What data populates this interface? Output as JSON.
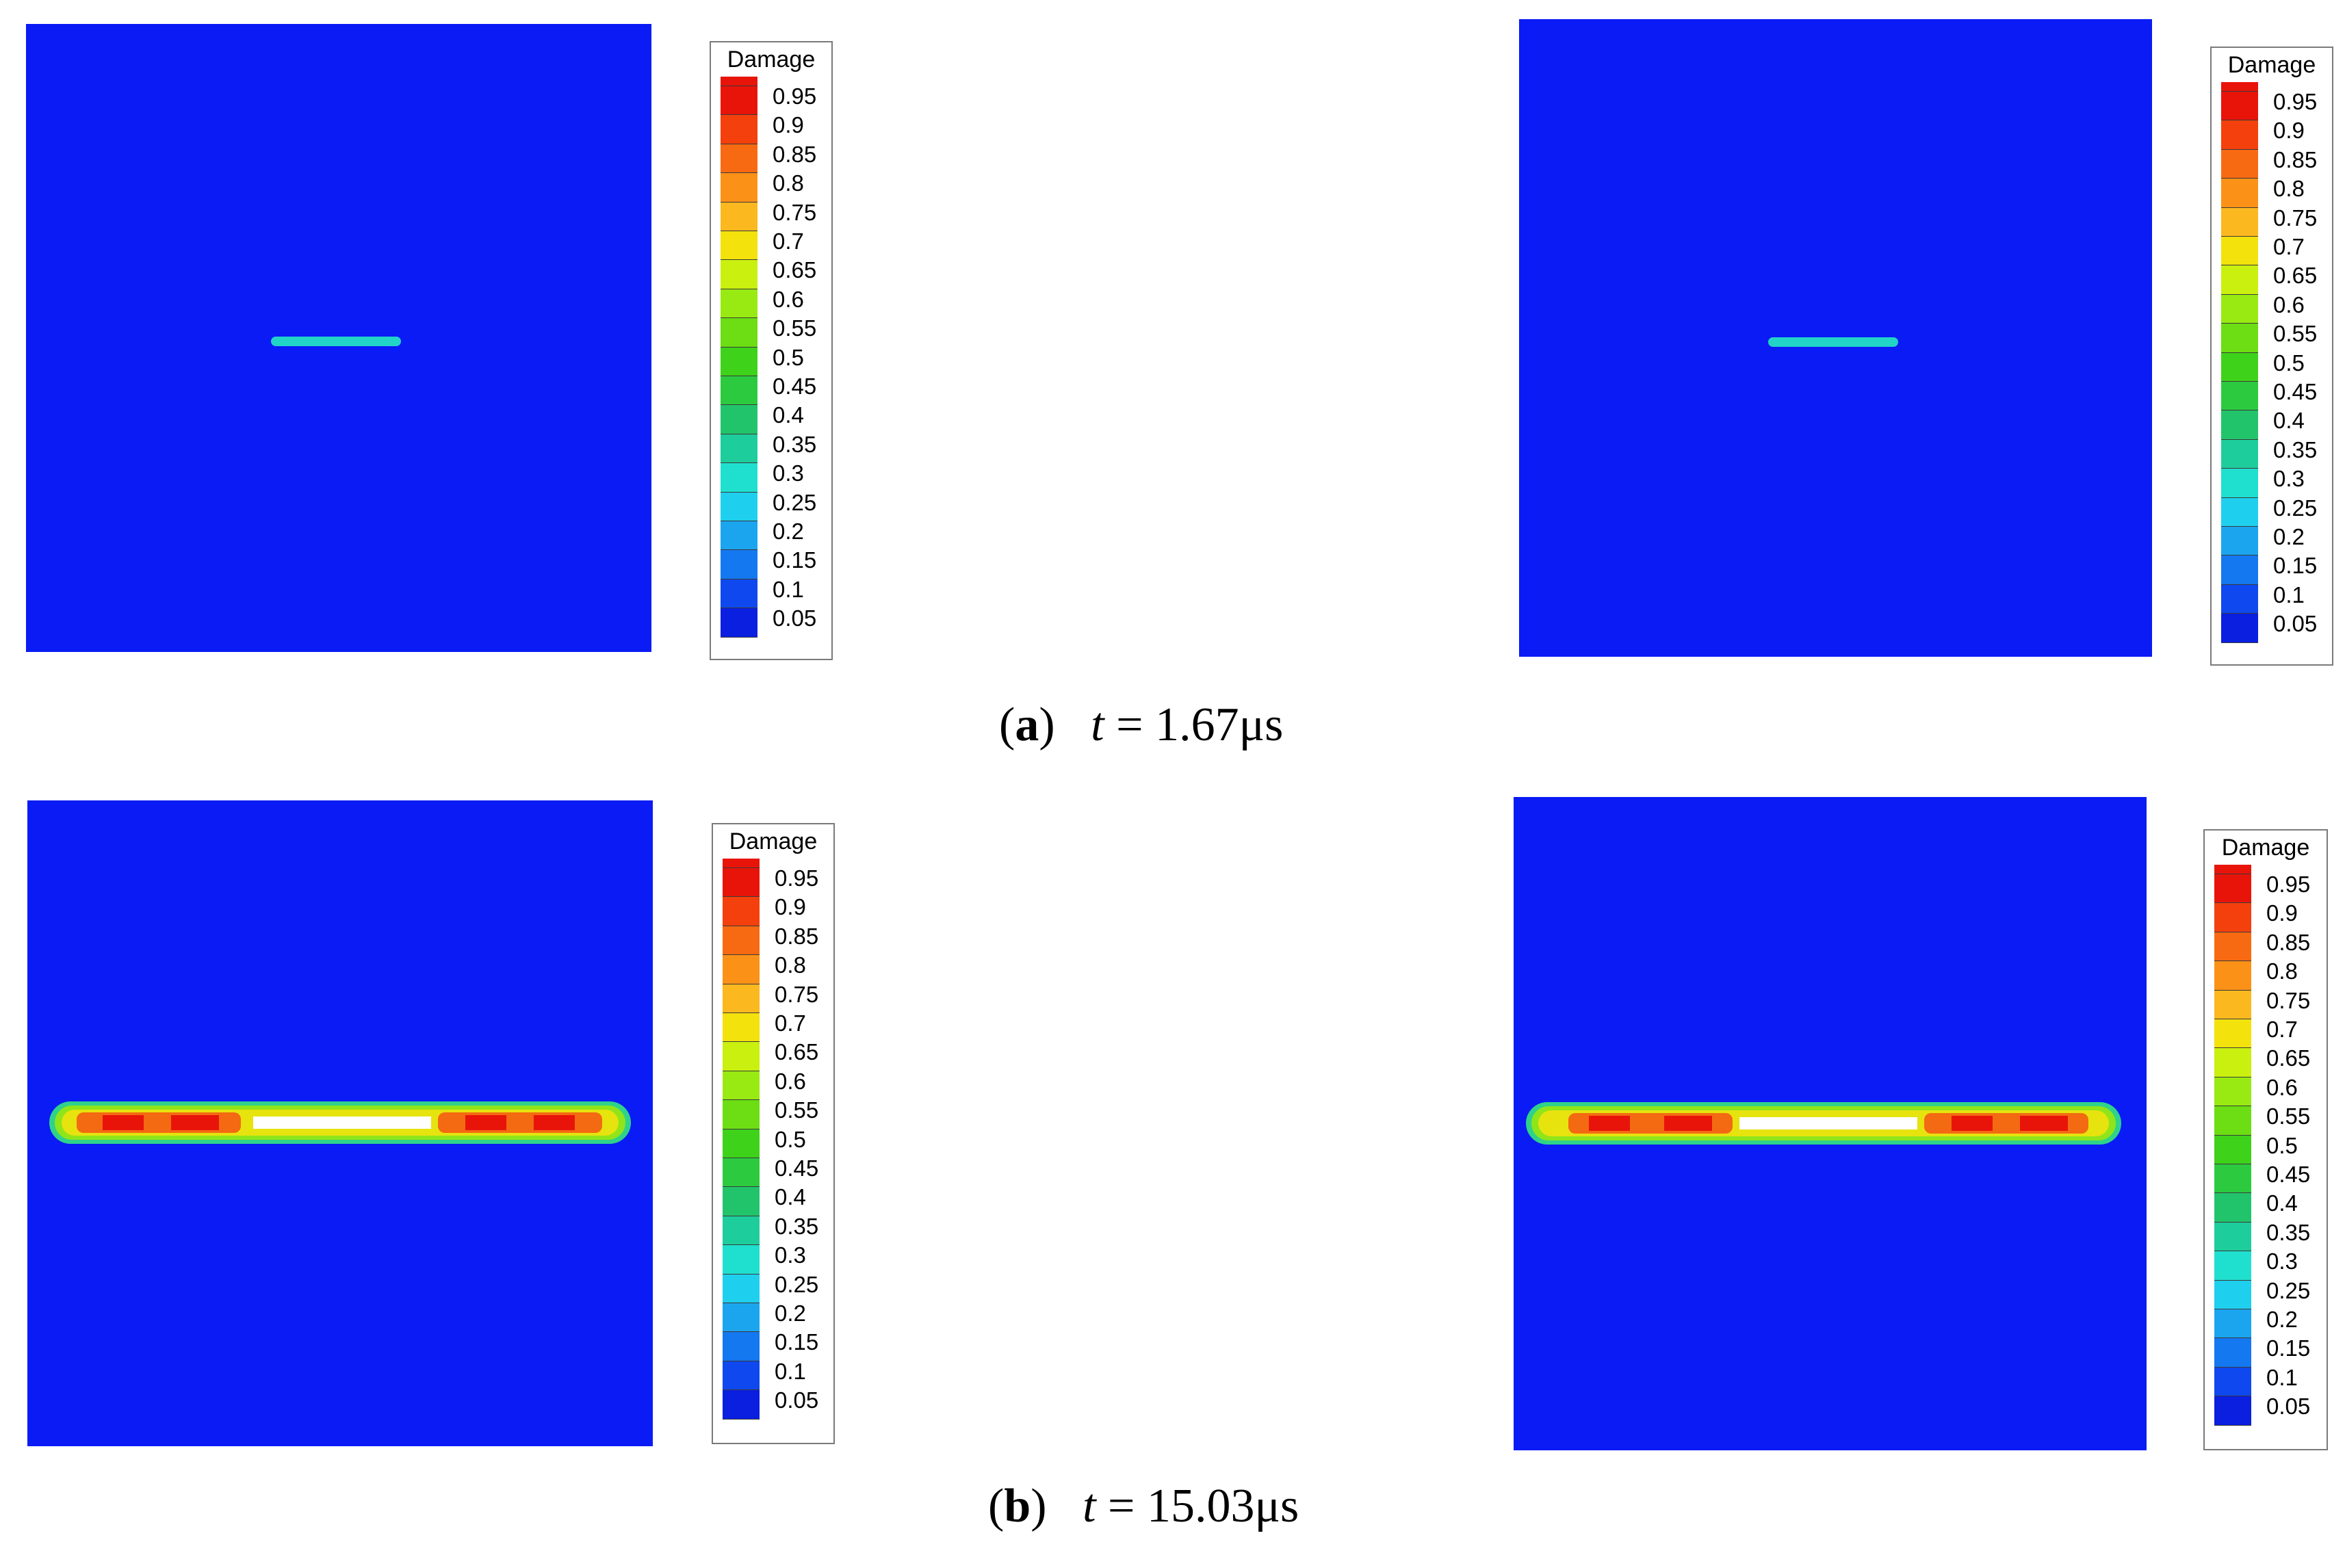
{
  "legend": {
    "title": "Damage",
    "levels": [
      "0.95",
      "0.9",
      "0.85",
      "0.8",
      "0.75",
      "0.7",
      "0.65",
      "0.6",
      "0.55",
      "0.5",
      "0.45",
      "0.4",
      "0.35",
      "0.3",
      "0.25",
      "0.2",
      "0.15",
      "0.1",
      "0.05"
    ],
    "colors": [
      "#e8140a",
      "#f4400c",
      "#f86a12",
      "#fb9217",
      "#fcb81f",
      "#f3e20c",
      "#c9f00f",
      "#99ea12",
      "#6cde13",
      "#3fd21a",
      "#2ccb3f",
      "#22c46b",
      "#1ecd9c",
      "#1fe0cf",
      "#1ed0ee",
      "#1ba5ef",
      "#1478f0",
      "#0e48ee",
      "#0a1fe0"
    ]
  },
  "captions": {
    "a": {
      "letter": "a",
      "var": "t",
      "eq": " = ",
      "value": "1.67",
      "unit": "μs"
    },
    "b": {
      "letter": "b",
      "var": "t",
      "eq": " = ",
      "value": "15.03",
      "unit": "μs"
    }
  }
}
